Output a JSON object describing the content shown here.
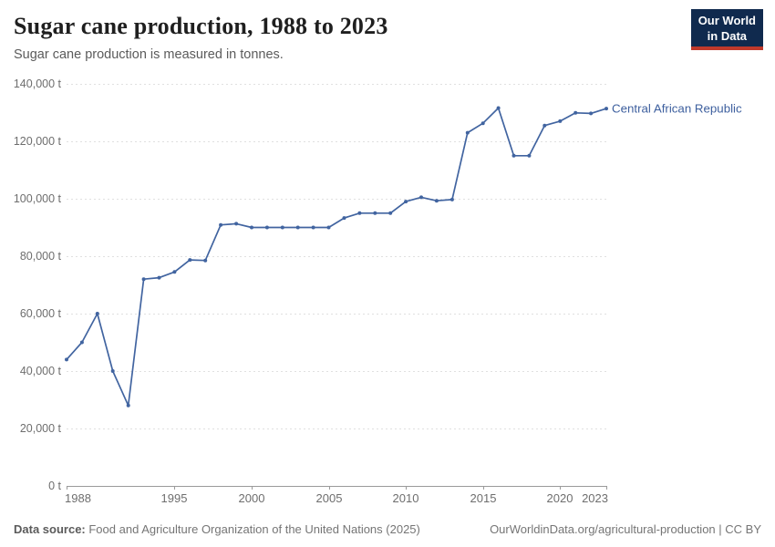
{
  "header": {
    "title": "Sugar cane production, 1988 to 2023",
    "subtitle": "Sugar cane production is measured in tonnes."
  },
  "logo": {
    "line1": "Our World",
    "line2": "in Data"
  },
  "colors": {
    "line": "#4164A0",
    "series_label": "#3d5f9e",
    "grid": "#e0e0e0",
    "axis": "#9a9a9a",
    "tick_text": "#6e6e6e",
    "logo_bg": "#102a4e",
    "logo_accent": "#c0392b"
  },
  "chart_data": {
    "type": "line",
    "title": "Sugar cane production, 1988 to 2023",
    "subtitle": "Sugar cane production is measured in tonnes.",
    "xlabel": "",
    "ylabel": "",
    "unit": "t",
    "grid": "horizontal-dashed",
    "legend_position": "end-of-line label",
    "xlim": [
      1988,
      2023
    ],
    "ylim": [
      0,
      140000
    ],
    "xticks": [
      1988,
      1995,
      2000,
      2005,
      2010,
      2015,
      2020,
      2023
    ],
    "yticks": [
      0,
      20000,
      40000,
      60000,
      80000,
      100000,
      120000,
      140000
    ],
    "ytick_labels": [
      "0 t",
      "20,000 t",
      "40,000 t",
      "60,000 t",
      "80,000 t",
      "100,000 t",
      "120,000 t",
      "140,000 t"
    ],
    "x": [
      1988,
      1989,
      1990,
      1991,
      1992,
      1993,
      1994,
      1995,
      1996,
      1997,
      1998,
      1999,
      2000,
      2001,
      2002,
      2003,
      2004,
      2005,
      2006,
      2007,
      2008,
      2009,
      2010,
      2011,
      2012,
      2013,
      2014,
      2015,
      2016,
      2017,
      2018,
      2019,
      2020,
      2021,
      2022,
      2023
    ],
    "series": [
      {
        "name": "Central African Republic",
        "values": [
          44000,
          50000,
          60000,
          40000,
          28000,
          72000,
          72500,
          74500,
          78700,
          78500,
          90900,
          91300,
          90000,
          90000,
          90000,
          90000,
          90000,
          90000,
          93300,
          95000,
          95000,
          95000,
          99000,
          100500,
          99300,
          99700,
          123000,
          126300,
          131600,
          115000,
          115000,
          125500,
          127000,
          129900,
          129700,
          131400
        ]
      }
    ]
  },
  "footer": {
    "source_label": "Data source:",
    "source_text": " Food and Agriculture Organization of the United Nations (2025)",
    "credit": "OurWorldinData.org/agricultural-production | CC BY"
  }
}
